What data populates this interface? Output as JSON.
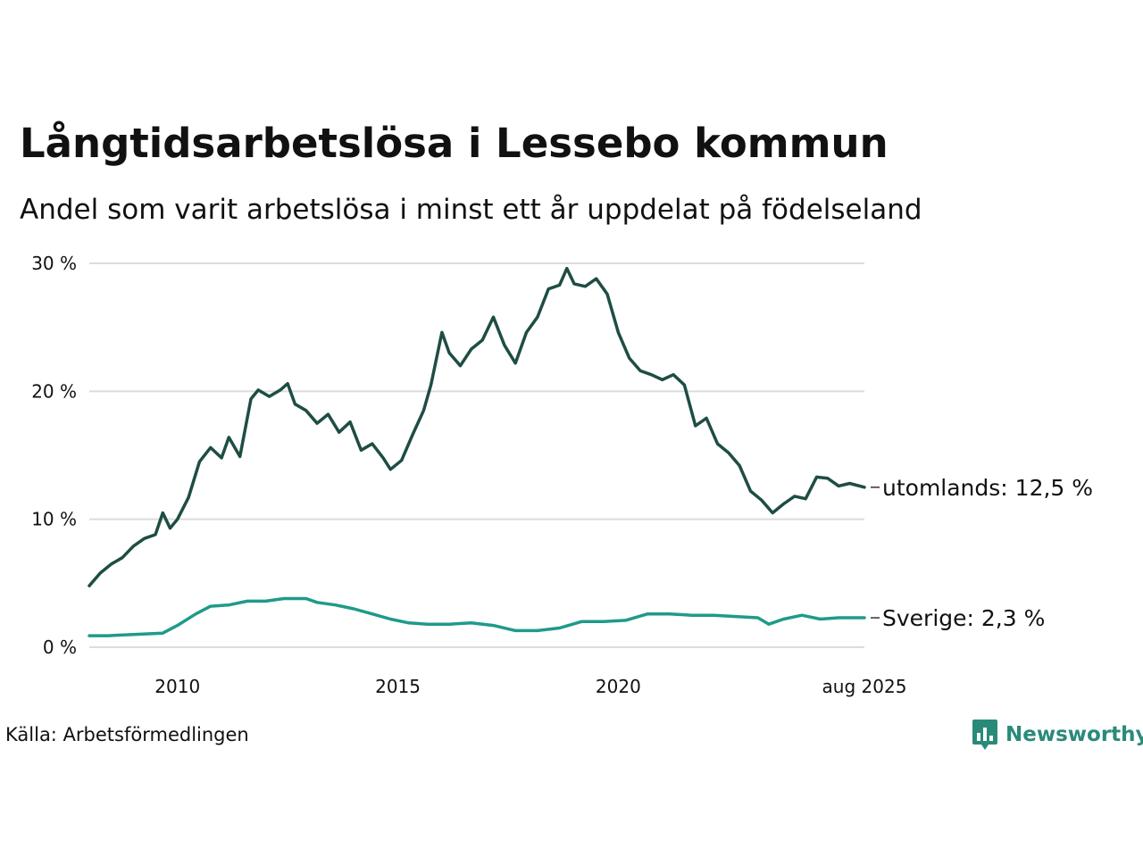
{
  "header": {
    "title": "Långtidsarbetslösa i Lessebo kommun",
    "subtitle": "Andel som varit arbetslösa i minst ett år uppdelat på födelseland"
  },
  "footer": {
    "source": "Källa: Arbetsförmedlingen",
    "brand": "Newsworthy"
  },
  "chart_data": {
    "type": "line",
    "title": "Långtidsarbetslösa i Lessebo kommun",
    "subtitle": "Andel som varit arbetslösa i minst ett år uppdelat på födelseland",
    "xlabel": "",
    "ylabel": "",
    "xlim": [
      "2008-01",
      "2025-08"
    ],
    "ylim": [
      0,
      30
    ],
    "x_ticks": [
      {
        "x": "2010-01",
        "label": "2010"
      },
      {
        "x": "2015-01",
        "label": "2015"
      },
      {
        "x": "2020-01",
        "label": "2020"
      },
      {
        "x": "2025-08",
        "label": "aug 2025"
      }
    ],
    "y_ticks": [
      {
        "y": 0,
        "label": "0 %"
      },
      {
        "y": 10,
        "label": "10 %"
      },
      {
        "y": 20,
        "label": "20 %"
      },
      {
        "y": 30,
        "label": "30 %"
      }
    ],
    "grid": true,
    "legend": "none (series labeled at line ends)",
    "series": [
      {
        "name": "utomlands",
        "end_label": "utomlands: 12,5 %",
        "color": "#1e4d44",
        "points": [
          [
            "2008-01",
            4.8
          ],
          [
            "2008-04",
            5.8
          ],
          [
            "2008-07",
            6.5
          ],
          [
            "2008-10",
            7.0
          ],
          [
            "2009-01",
            7.9
          ],
          [
            "2009-04",
            8.5
          ],
          [
            "2009-07",
            8.8
          ],
          [
            "2009-09",
            10.5
          ],
          [
            "2009-11",
            9.3
          ],
          [
            "2010-01",
            10.0
          ],
          [
            "2010-04",
            11.7
          ],
          [
            "2010-07",
            14.5
          ],
          [
            "2010-10",
            15.6
          ],
          [
            "2011-01",
            14.8
          ],
          [
            "2011-03",
            16.4
          ],
          [
            "2011-06",
            14.9
          ],
          [
            "2011-09",
            19.4
          ],
          [
            "2011-11",
            20.1
          ],
          [
            "2012-02",
            19.6
          ],
          [
            "2012-05",
            20.1
          ],
          [
            "2012-07",
            20.6
          ],
          [
            "2012-09",
            19.0
          ],
          [
            "2012-12",
            18.5
          ],
          [
            "2013-03",
            17.5
          ],
          [
            "2013-06",
            18.2
          ],
          [
            "2013-09",
            16.8
          ],
          [
            "2013-12",
            17.6
          ],
          [
            "2014-03",
            15.4
          ],
          [
            "2014-06",
            15.9
          ],
          [
            "2014-09",
            14.8
          ],
          [
            "2014-11",
            13.9
          ],
          [
            "2015-02",
            14.6
          ],
          [
            "2015-05",
            16.6
          ],
          [
            "2015-08",
            18.5
          ],
          [
            "2015-10",
            20.5
          ],
          [
            "2016-01",
            24.6
          ],
          [
            "2016-03",
            23.0
          ],
          [
            "2016-06",
            22.0
          ],
          [
            "2016-09",
            23.3
          ],
          [
            "2016-12",
            24.0
          ],
          [
            "2017-03",
            25.8
          ],
          [
            "2017-06",
            23.6
          ],
          [
            "2017-09",
            22.2
          ],
          [
            "2017-12",
            24.6
          ],
          [
            "2018-03",
            25.8
          ],
          [
            "2018-06",
            28.0
          ],
          [
            "2018-09",
            28.3
          ],
          [
            "2018-11",
            29.6
          ],
          [
            "2019-01",
            28.4
          ],
          [
            "2019-04",
            28.2
          ],
          [
            "2019-07",
            28.8
          ],
          [
            "2019-10",
            27.6
          ],
          [
            "2020-01",
            24.6
          ],
          [
            "2020-04",
            22.6
          ],
          [
            "2020-07",
            21.6
          ],
          [
            "2020-10",
            21.3
          ],
          [
            "2021-01",
            20.9
          ],
          [
            "2021-04",
            21.3
          ],
          [
            "2021-07",
            20.5
          ],
          [
            "2021-10",
            17.3
          ],
          [
            "2022-01",
            17.9
          ],
          [
            "2022-04",
            15.9
          ],
          [
            "2022-07",
            15.2
          ],
          [
            "2022-10",
            14.2
          ],
          [
            "2023-01",
            12.2
          ],
          [
            "2023-04",
            11.5
          ],
          [
            "2023-07",
            10.5
          ],
          [
            "2023-10",
            11.2
          ],
          [
            "2024-01",
            11.8
          ],
          [
            "2024-04",
            11.6
          ],
          [
            "2024-07",
            13.3
          ],
          [
            "2024-10",
            13.2
          ],
          [
            "2025-01",
            12.6
          ],
          [
            "2025-04",
            12.8
          ],
          [
            "2025-08",
            12.5
          ]
        ]
      },
      {
        "name": "Sverige",
        "end_label": "Sverige:  2,3 %",
        "color": "#1f9a8a",
        "points": [
          [
            "2008-01",
            0.9
          ],
          [
            "2008-06",
            0.9
          ],
          [
            "2009-01",
            1.0
          ],
          [
            "2009-09",
            1.1
          ],
          [
            "2010-01",
            1.7
          ],
          [
            "2010-06",
            2.6
          ],
          [
            "2010-10",
            3.2
          ],
          [
            "2011-03",
            3.3
          ],
          [
            "2011-08",
            3.6
          ],
          [
            "2012-01",
            3.6
          ],
          [
            "2012-06",
            3.8
          ],
          [
            "2012-12",
            3.8
          ],
          [
            "2013-03",
            3.5
          ],
          [
            "2013-08",
            3.3
          ],
          [
            "2014-01",
            3.0
          ],
          [
            "2014-06",
            2.6
          ],
          [
            "2014-11",
            2.2
          ],
          [
            "2015-04",
            1.9
          ],
          [
            "2015-09",
            1.8
          ],
          [
            "2016-03",
            1.8
          ],
          [
            "2016-09",
            1.9
          ],
          [
            "2017-03",
            1.7
          ],
          [
            "2017-09",
            1.3
          ],
          [
            "2018-03",
            1.3
          ],
          [
            "2018-09",
            1.5
          ],
          [
            "2019-03",
            2.0
          ],
          [
            "2019-09",
            2.0
          ],
          [
            "2020-03",
            2.1
          ],
          [
            "2020-09",
            2.6
          ],
          [
            "2021-03",
            2.6
          ],
          [
            "2021-09",
            2.5
          ],
          [
            "2022-03",
            2.5
          ],
          [
            "2022-09",
            2.4
          ],
          [
            "2023-03",
            2.3
          ],
          [
            "2023-06",
            1.8
          ],
          [
            "2023-10",
            2.2
          ],
          [
            "2024-03",
            2.5
          ],
          [
            "2024-08",
            2.2
          ],
          [
            "2025-01",
            2.3
          ],
          [
            "2025-08",
            2.3
          ]
        ]
      }
    ]
  }
}
